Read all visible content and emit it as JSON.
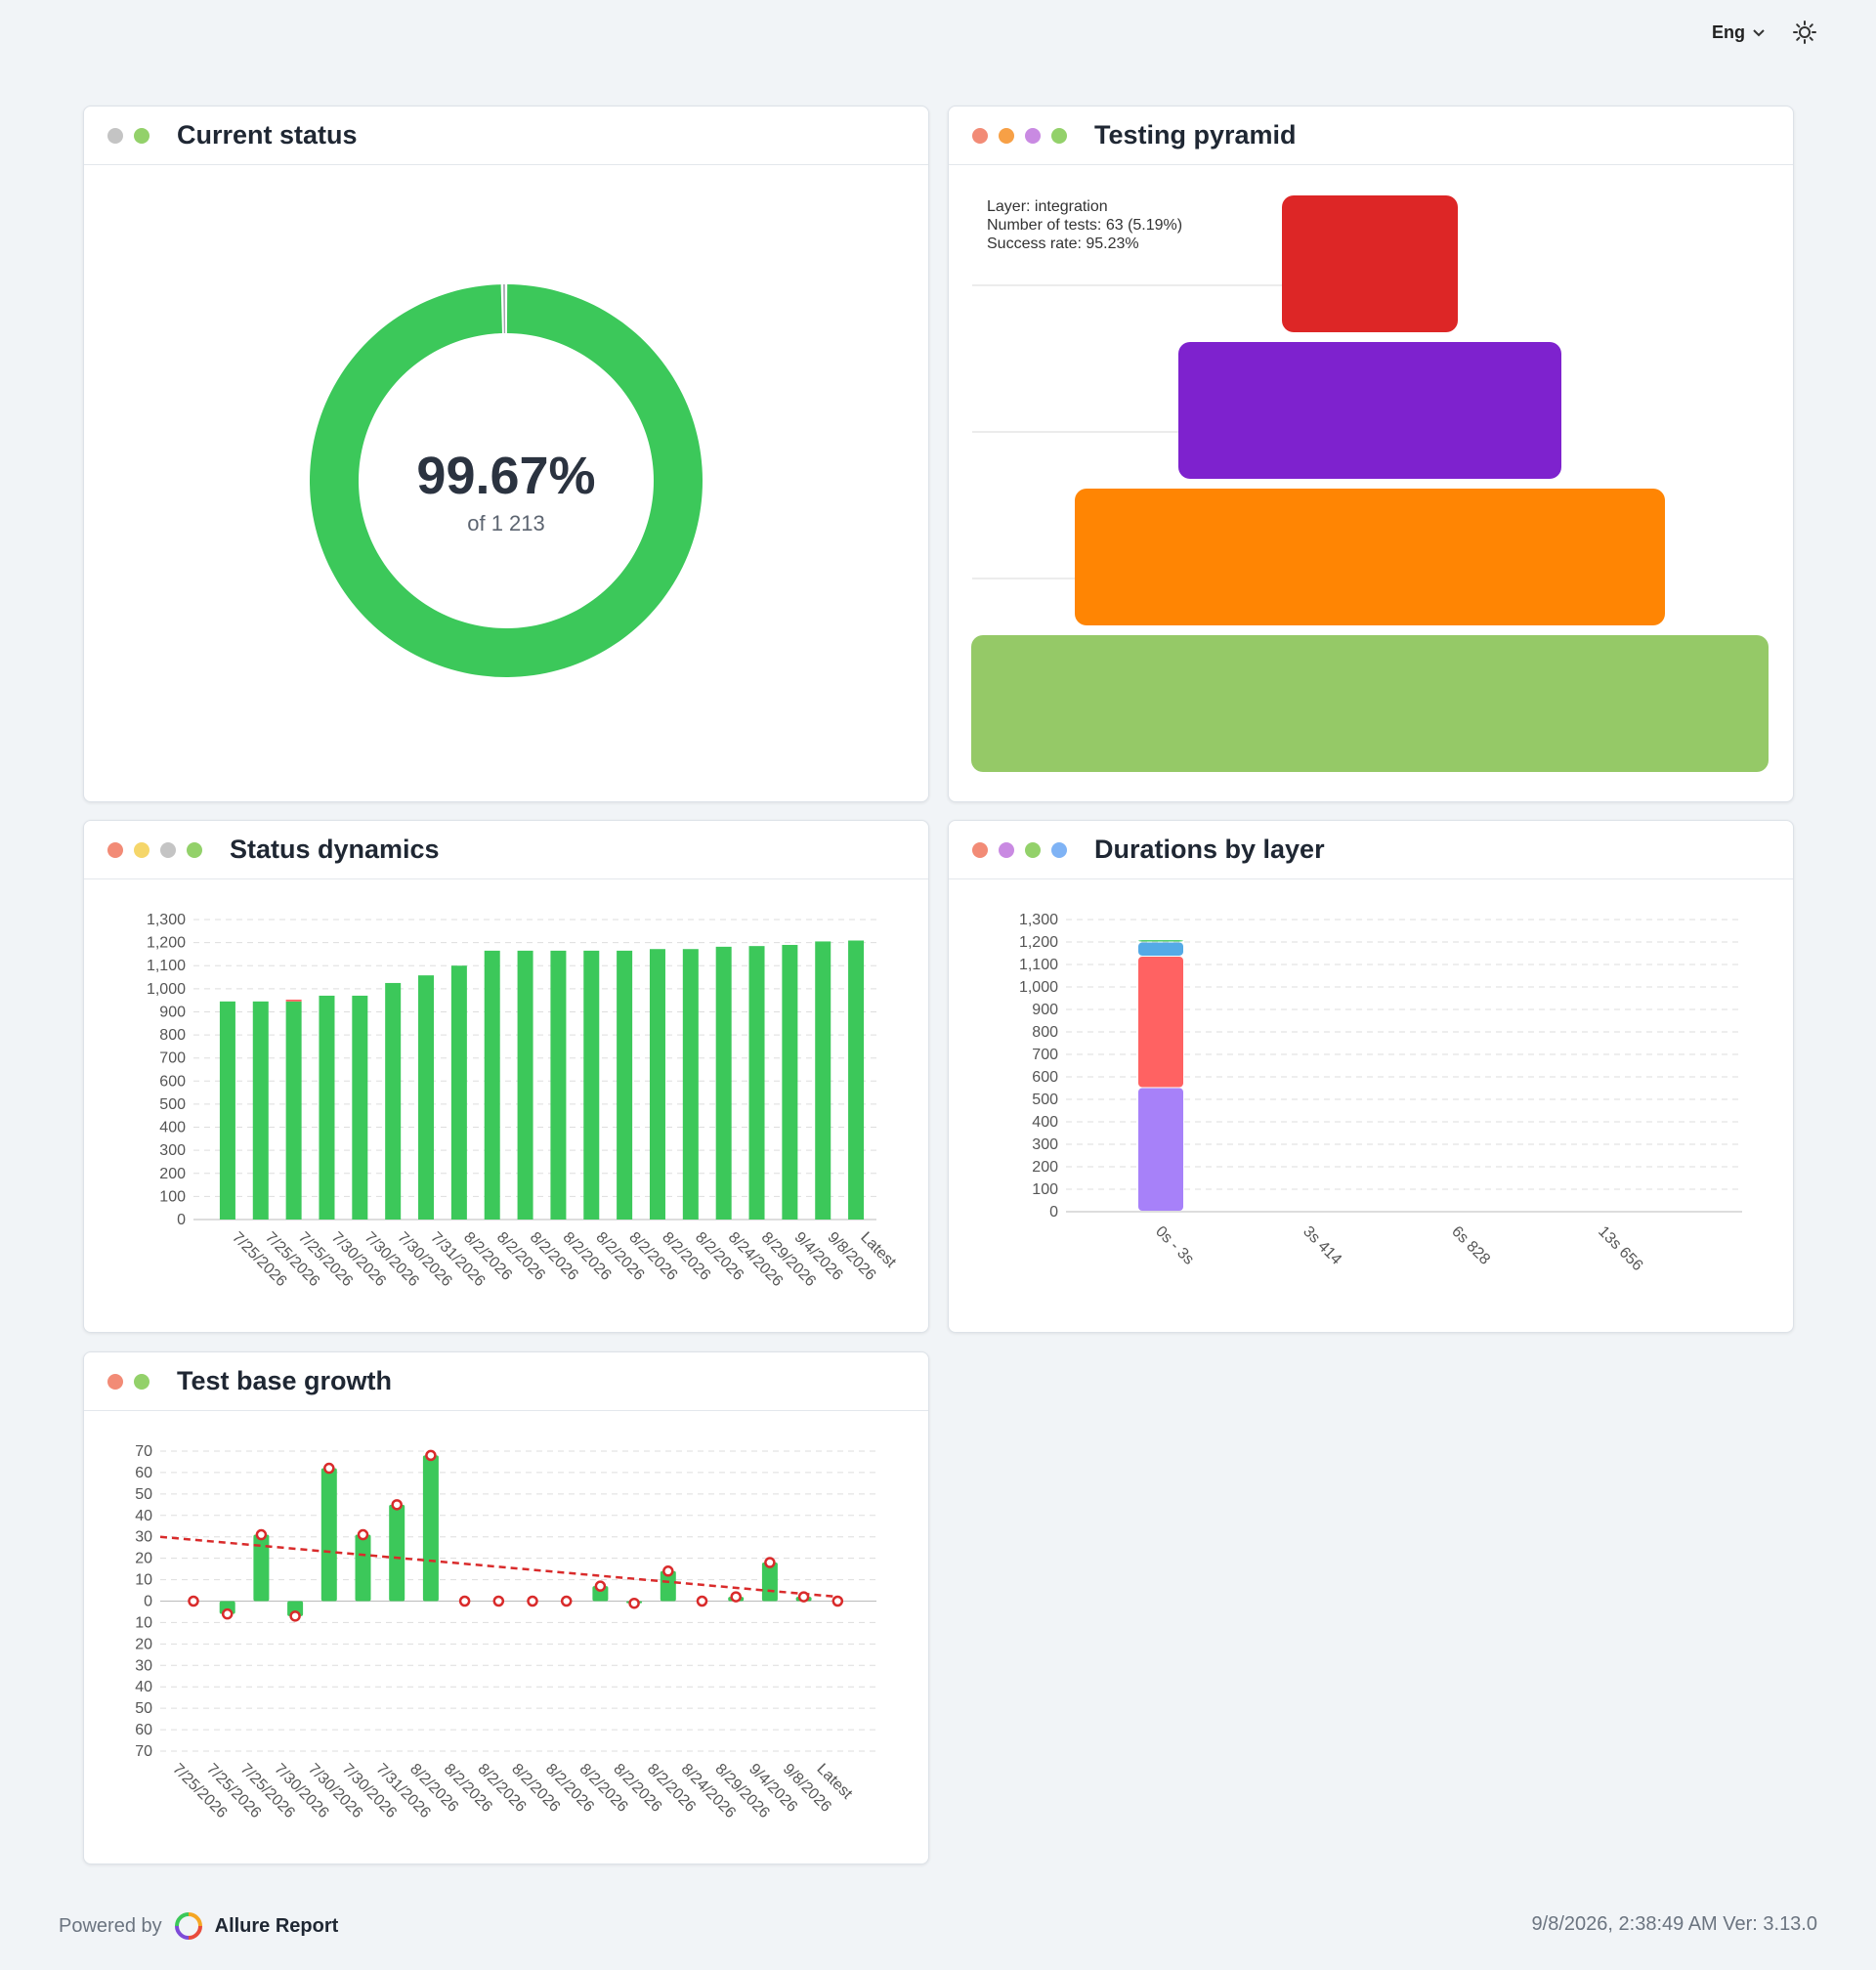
{
  "header": {
    "language": "Eng"
  },
  "colors": {
    "passed": "#3cc85a",
    "failed": "#dd2626",
    "broken": "#ff6262",
    "skipped": "#a0a4ab",
    "trend": "#d92b2b"
  },
  "cards": {
    "current_status": {
      "title": "Current status",
      "dots": [
        "#c4c4c4",
        "#93d16a"
      ],
      "percent": "99.67%",
      "subtitle": "of 1 213"
    },
    "testing_pyramid": {
      "title": "Testing pyramid",
      "dots": [
        "#f28b76",
        "#f7a046",
        "#c98ae2",
        "#93d16a"
      ]
    },
    "status_dynamics": {
      "title": "Status dynamics",
      "dots": [
        "#f28b76",
        "#f5d66a",
        "#c4c4c4",
        "#93d16a"
      ]
    },
    "durations_by_layer": {
      "title": "Durations by layer",
      "dots": [
        "#f28b76",
        "#c98ae2",
        "#93d16a",
        "#7fb3f5"
      ]
    },
    "test_base_growth": {
      "title": "Test base growth",
      "dots": [
        "#f28b76",
        "#93d16a"
      ]
    }
  },
  "chart_data": [
    {
      "id": "current_status",
      "type": "pie",
      "slices": [
        {
          "name": "passed",
          "value": 1209,
          "color": "#3cc85a"
        },
        {
          "name": "other",
          "value": 4,
          "color": "#a0a4ab"
        }
      ],
      "center_label": "99.67%",
      "center_sublabel": "of 1 213"
    },
    {
      "id": "testing_pyramid",
      "type": "bar",
      "layers": [
        {
          "color": "#dd2626"
        },
        {
          "color": "#7e22ce"
        },
        {
          "color": "#ff8503"
        },
        {
          "color": "#95c967"
        }
      ],
      "tooltip": [
        "Layer: integration",
        "Number of tests: 63 (5.19%)",
        "Success rate: 95.23%"
      ]
    },
    {
      "id": "status_dynamics",
      "type": "bar",
      "categories": [
        "7/25/2026",
        "7/25/2026",
        "7/25/2026",
        "7/30/2026",
        "7/30/2026",
        "7/30/2026",
        "7/31/2026",
        "8/2/2026",
        "8/2/2026",
        "8/2/2026",
        "8/2/2026",
        "8/2/2026",
        "8/2/2026",
        "8/2/2026",
        "8/2/2026",
        "8/24/2026",
        "8/29/2026",
        "9/4/2026",
        "9/8/2026",
        "Latest"
      ],
      "series": [
        {
          "values": [
            945,
            945,
            945,
            970,
            970,
            1025,
            1058,
            1100,
            1165,
            1165,
            1165,
            1165,
            1165,
            1172,
            1172,
            1182,
            1185,
            1190,
            1205,
            1209
          ],
          "color": "#3cc85a"
        },
        {
          "values": [
            0,
            0,
            8,
            0,
            0,
            0,
            0,
            0,
            0,
            0,
            0,
            0,
            0,
            0,
            0,
            0,
            0,
            0,
            0,
            0
          ],
          "color": "#ff6262"
        }
      ],
      "ylim": [
        0,
        1300
      ],
      "yticks": [
        "0",
        "100",
        "200",
        "300",
        "400",
        "500",
        "600",
        "700",
        "800",
        "900",
        "1,000",
        "1,100",
        "1,200",
        "1,300"
      ]
    },
    {
      "id": "durations_by_layer",
      "type": "bar",
      "categories": [
        "0s - 3s",
        "3s 414ms",
        "6s 828ms",
        "13s 656ms"
      ],
      "category_labels": [
        "0s - 3s",
        "3s 414",
        "6s 828",
        "13s 656"
      ],
      "series": [
        {
          "values": [
            550,
            0,
            0,
            0
          ],
          "color": "#a781f9"
        },
        {
          "values": [
            585,
            0,
            0,
            0
          ],
          "color": "#ff6262"
        },
        {
          "values": [
            63,
            0,
            0,
            0
          ],
          "color": "#54aae6"
        },
        {
          "values": [
            10,
            0,
            0,
            0
          ],
          "color": "#3cc85a"
        }
      ],
      "ylim": [
        0,
        1300
      ],
      "yticks": [
        "0",
        "100",
        "200",
        "300",
        "400",
        "500",
        "600",
        "700",
        "800",
        "900",
        "1,000",
        "1,100",
        "1,200",
        "1,300"
      ]
    },
    {
      "id": "test_base_growth",
      "type": "bar",
      "categories": [
        "7/25/2026",
        "7/25/2026",
        "7/25/2026",
        "7/30/2026",
        "7/30/2026",
        "7/30/2026",
        "7/31/2026",
        "8/2/2026",
        "8/2/2026",
        "8/2/2026",
        "8/2/2026",
        "8/2/2026",
        "8/2/2026",
        "8/2/2026",
        "8/2/2026",
        "8/24/2026",
        "8/29/2026",
        "9/4/2026",
        "9/8/2026",
        "Latest"
      ],
      "series": [
        {
          "values": [
            0,
            -6,
            31,
            -7,
            62,
            31,
            45,
            68,
            0,
            0,
            0,
            0,
            7,
            -1,
            14,
            0,
            2,
            18,
            2,
            0
          ],
          "color": "#3cc85a"
        }
      ],
      "trend": {
        "start": 30,
        "end": 2,
        "color": "#d92b2b"
      },
      "ylim": [
        -70,
        70
      ],
      "yticks": [
        "70",
        "60",
        "50",
        "40",
        "30",
        "20",
        "10",
        "0",
        "10",
        "20",
        "30",
        "40",
        "50",
        "60",
        "70"
      ]
    }
  ],
  "footer": {
    "powered_by": "Powered by",
    "brand": "Allure Report",
    "timestamp": "9/8/2026, 2:38:49 AM Ver: 3.13.0"
  }
}
